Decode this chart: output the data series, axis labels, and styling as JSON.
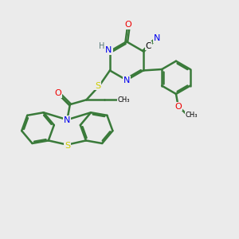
{
  "background_color": "#ebebeb",
  "bond_color": "#3a7a3a",
  "bond_width": 1.8,
  "heteroatom_colors": {
    "N": "#0000ee",
    "O": "#ee0000",
    "S": "#cccc00",
    "H": "#557777",
    "C": "#000000"
  }
}
